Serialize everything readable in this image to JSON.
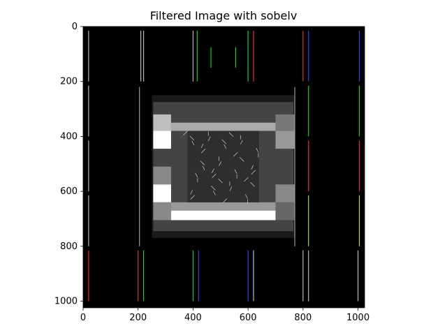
{
  "figure": {
    "background": "#ffffff"
  },
  "chart_data": {
    "type": "heatmap",
    "title": "Filtered Image with sobelv",
    "xlabel": "",
    "ylabel": "",
    "xlim": [
      0,
      1024
    ],
    "ylim": [
      1024,
      0
    ],
    "y_axis_inverted": true,
    "x_ticks": [
      0,
      200,
      400,
      600,
      800,
      1000
    ],
    "y_ticks": [
      0,
      200,
      400,
      600,
      800,
      1000
    ],
    "grid": false,
    "colormap": "gray",
    "image_background": "#000000",
    "edge_lines": [
      {
        "x": 20,
        "y0": 15,
        "y1": 200,
        "color": "#bbbbbb"
      },
      {
        "x": 210,
        "y0": 15,
        "y1": 200,
        "color": "#bbbbbb"
      },
      {
        "x": 220,
        "y0": 15,
        "y1": 200,
        "color": "#bbbbbb"
      },
      {
        "x": 400,
        "y0": 15,
        "y1": 200,
        "color": "#bbbbbb"
      },
      {
        "x": 415,
        "y0": 15,
        "y1": 200,
        "color": "#22cc22"
      },
      {
        "x": 465,
        "y0": 75,
        "y1": 150,
        "color": "#22cc22"
      },
      {
        "x": 555,
        "y0": 75,
        "y1": 150,
        "color": "#22cc22"
      },
      {
        "x": 600,
        "y0": 15,
        "y1": 200,
        "color": "#22cc22"
      },
      {
        "x": 620,
        "y0": 15,
        "y1": 200,
        "color": "#dd3333"
      },
      {
        "x": 800,
        "y0": 15,
        "y1": 200,
        "color": "#dd3333"
      },
      {
        "x": 820,
        "y0": 15,
        "y1": 200,
        "color": "#3344dd"
      },
      {
        "x": 1005,
        "y0": 15,
        "y1": 200,
        "color": "#3344dd"
      },
      {
        "x": 20,
        "y0": 215,
        "y1": 400,
        "color": "#bbbbbb"
      },
      {
        "x": 820,
        "y0": 215,
        "y1": 400,
        "color": "#22cc22"
      },
      {
        "x": 1005,
        "y0": 215,
        "y1": 400,
        "color": "#22cc22"
      },
      {
        "x": 20,
        "y0": 415,
        "y1": 600,
        "color": "#bbbbbb"
      },
      {
        "x": 820,
        "y0": 415,
        "y1": 600,
        "color": "#dd3333"
      },
      {
        "x": 1005,
        "y0": 415,
        "y1": 600,
        "color": "#dd3333"
      },
      {
        "x": 20,
        "y0": 615,
        "y1": 800,
        "color": "#bbbbbb"
      },
      {
        "x": 820,
        "y0": 615,
        "y1": 800,
        "color": "#cccc33"
      },
      {
        "x": 1005,
        "y0": 615,
        "y1": 800,
        "color": "#cccc33"
      },
      {
        "x": 20,
        "y0": 815,
        "y1": 1000,
        "color": "#dd3333"
      },
      {
        "x": 200,
        "y0": 815,
        "y1": 1000,
        "color": "#dd3333"
      },
      {
        "x": 220,
        "y0": 815,
        "y1": 1000,
        "color": "#22cc22"
      },
      {
        "x": 400,
        "y0": 815,
        "y1": 1000,
        "color": "#22cc22"
      },
      {
        "x": 420,
        "y0": 815,
        "y1": 1000,
        "color": "#3344dd"
      },
      {
        "x": 600,
        "y0": 815,
        "y1": 1000,
        "color": "#3344dd"
      },
      {
        "x": 620,
        "y0": 815,
        "y1": 1000,
        "color": "#bbbbbb"
      },
      {
        "x": 800,
        "y0": 815,
        "y1": 1000,
        "color": "#bbbbbb"
      },
      {
        "x": 820,
        "y0": 815,
        "y1": 1000,
        "color": "#bbbbbb"
      },
      {
        "x": 1000,
        "y0": 815,
        "y1": 1000,
        "color": "#bbbbbb"
      },
      {
        "x": 205,
        "y0": 220,
        "y1": 800,
        "color": "#999999"
      },
      {
        "x": 770,
        "y0": 220,
        "y1": 800,
        "color": "#999999"
      }
    ],
    "test_pattern": {
      "frame": {
        "x0": 250,
        "x1": 770,
        "y0": 250,
        "y1": 770,
        "color": "#1a1a1a"
      },
      "inner_frame": {
        "x0": 255,
        "x1": 765,
        "y0": 275,
        "y1": 745,
        "color": "#444444"
      },
      "blocks": [
        {
          "x0": 255,
          "x1": 320,
          "y0": 320,
          "y1": 380,
          "color": "#bfbfbf"
        },
        {
          "x0": 255,
          "x1": 320,
          "y0": 380,
          "y1": 445,
          "color": "#ffffff"
        },
        {
          "x0": 255,
          "x1": 320,
          "y0": 510,
          "y1": 575,
          "color": "#888888"
        },
        {
          "x0": 255,
          "x1": 320,
          "y0": 575,
          "y1": 640,
          "color": "#ffffff"
        },
        {
          "x0": 255,
          "x1": 320,
          "y0": 640,
          "y1": 705,
          "color": "#888888"
        },
        {
          "x0": 320,
          "x1": 700,
          "y0": 350,
          "y1": 380,
          "color": "#aaaaaa"
        },
        {
          "x0": 320,
          "x1": 700,
          "y0": 670,
          "y1": 705,
          "color": "#ffffff"
        },
        {
          "x0": 320,
          "x1": 700,
          "y0": 640,
          "y1": 670,
          "color": "#999999"
        },
        {
          "x0": 700,
          "x1": 770,
          "y0": 320,
          "y1": 380,
          "color": "#777777"
        },
        {
          "x0": 700,
          "x1": 770,
          "y0": 380,
          "y1": 445,
          "color": "#999999"
        },
        {
          "x0": 700,
          "x1": 770,
          "y0": 575,
          "y1": 640,
          "color": "#888888"
        },
        {
          "x0": 700,
          "x1": 770,
          "y0": 640,
          "y1": 705,
          "color": "#666666"
        }
      ],
      "photo": {
        "x0": 380,
        "x1": 640,
        "y0": 380,
        "y1": 640,
        "color": "#2e2e2e"
      }
    }
  }
}
